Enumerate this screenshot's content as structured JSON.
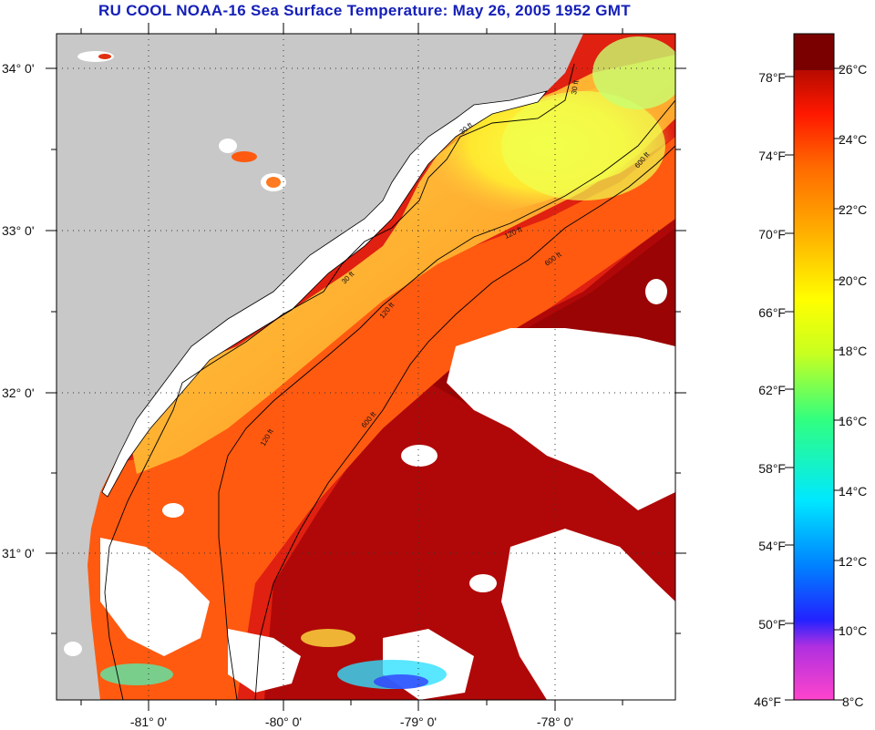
{
  "title": "RU COOL  NOAA-16  Sea Surface Temperature:  May 26, 2005 1952 GMT",
  "map": {
    "lat_ticks": [
      "34° 0'",
      "33° 0'",
      "32° 0'",
      "31° 0'"
    ],
    "lon_ticks": [
      "-81° 0'",
      "-80° 0'",
      "-79° 0'",
      "-78° 0'"
    ],
    "contours": [
      "30 ft",
      "120 ft",
      "600 ft"
    ]
  },
  "colorbar": {
    "fahrenheit": [
      "78°F",
      "74°F",
      "70°F",
      "66°F",
      "62°F",
      "58°F",
      "54°F",
      "50°F",
      "46°F"
    ],
    "celsius": [
      "26°C",
      "24°C",
      "22°C",
      "20°C",
      "18°C",
      "16°C",
      "14°C",
      "12°C",
      "10°C",
      "8°C"
    ]
  },
  "colors": {
    "title": "#1520b8",
    "land": "#c8c8c8",
    "cloud": "#ffffff"
  }
}
